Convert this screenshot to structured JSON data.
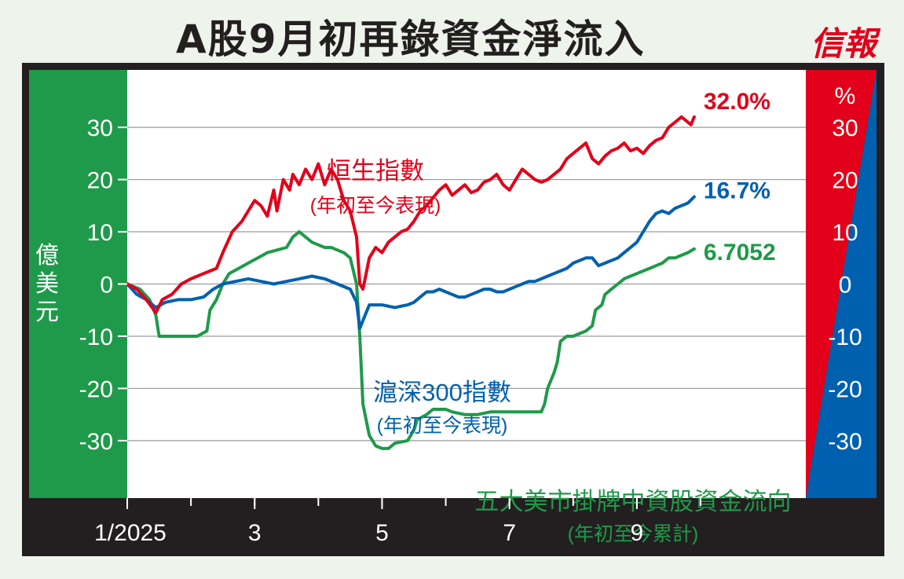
{
  "header": {
    "title": "A股9月初再錄資金淨流入",
    "logo": "信報"
  },
  "colors": {
    "hsi": "#e2001a",
    "csi300": "#0060b0",
    "flow": "#1f9a4a",
    "left_panel": "#1f9a4a",
    "frame": "#231f20",
    "plot_bg": "#ffffff"
  },
  "chart_data": {
    "type": "line",
    "y_left": {
      "label": "億美元",
      "ticks": [
        "30",
        "20",
        "10",
        "0",
        "-10",
        "-20",
        "-30"
      ],
      "range": [
        -41,
        41
      ]
    },
    "y_right": {
      "label": "%",
      "ticks": [
        "30",
        "20",
        "10",
        "0",
        "-10",
        "-20",
        "-30"
      ],
      "range": [
        -41,
        41
      ]
    },
    "x_ticks": [
      "1/2025",
      "3",
      "5",
      "7",
      "9"
    ],
    "x_range": [
      0,
      9
    ],
    "series": [
      {
        "name": "恒生指數",
        "sub_label": "(年初至今表現)",
        "end_label": "32.0%",
        "axis": "right",
        "points": [
          [
            0,
            0
          ],
          [
            0.15,
            -1
          ],
          [
            0.3,
            -3
          ],
          [
            0.45,
            -5.5
          ],
          [
            0.55,
            -3
          ],
          [
            0.7,
            -2
          ],
          [
            0.85,
            0
          ],
          [
            1,
            1
          ],
          [
            1.2,
            2
          ],
          [
            1.4,
            3
          ],
          [
            1.5,
            6
          ],
          [
            1.65,
            10
          ],
          [
            1.8,
            12
          ],
          [
            1.9,
            14
          ],
          [
            2.0,
            16
          ],
          [
            2.1,
            15
          ],
          [
            2.2,
            13
          ],
          [
            2.3,
            18
          ],
          [
            2.35,
            14
          ],
          [
            2.45,
            20
          ],
          [
            2.55,
            18
          ],
          [
            2.6,
            21
          ],
          [
            2.7,
            19
          ],
          [
            2.8,
            22
          ],
          [
            2.9,
            20
          ],
          [
            3.0,
            23
          ],
          [
            3.1,
            19
          ],
          [
            3.2,
            22
          ],
          [
            3.3,
            20
          ],
          [
            3.4,
            16
          ],
          [
            3.5,
            14
          ],
          [
            3.6,
            9
          ],
          [
            3.65,
            0
          ],
          [
            3.7,
            -1
          ],
          [
            3.75,
            2
          ],
          [
            3.8,
            5
          ],
          [
            3.9,
            7
          ],
          [
            4.0,
            6
          ],
          [
            4.1,
            8
          ],
          [
            4.2,
            9
          ],
          [
            4.3,
            10
          ],
          [
            4.4,
            10.5
          ],
          [
            4.5,
            12
          ],
          [
            4.6,
            14
          ],
          [
            4.7,
            15
          ],
          [
            4.8,
            16.5
          ],
          [
            4.9,
            18
          ],
          [
            5.0,
            19
          ],
          [
            5.1,
            17
          ],
          [
            5.2,
            18
          ],
          [
            5.3,
            19
          ],
          [
            5.4,
            17.5
          ],
          [
            5.5,
            18
          ],
          [
            5.6,
            19.5
          ],
          [
            5.7,
            20
          ],
          [
            5.8,
            21
          ],
          [
            5.9,
            19
          ],
          [
            6.0,
            18
          ],
          [
            6.1,
            20
          ],
          [
            6.2,
            22
          ],
          [
            6.3,
            21
          ],
          [
            6.4,
            20
          ],
          [
            6.5,
            19.5
          ],
          [
            6.6,
            20
          ],
          [
            6.7,
            21
          ],
          [
            6.8,
            22
          ],
          [
            6.9,
            24
          ],
          [
            7.0,
            25
          ],
          [
            7.1,
            26
          ],
          [
            7.2,
            27
          ],
          [
            7.3,
            24
          ],
          [
            7.4,
            23
          ],
          [
            7.5,
            24.5
          ],
          [
            7.6,
            25.5
          ],
          [
            7.7,
            26
          ],
          [
            7.8,
            27
          ],
          [
            7.9,
            25.5
          ],
          [
            8.0,
            26
          ],
          [
            8.1,
            25
          ],
          [
            8.2,
            26.5
          ],
          [
            8.3,
            27.5
          ],
          [
            8.4,
            28
          ],
          [
            8.5,
            30
          ],
          [
            8.6,
            31
          ],
          [
            8.7,
            32
          ],
          [
            8.8,
            31
          ],
          [
            8.85,
            30.5
          ],
          [
            8.9,
            32
          ]
        ]
      },
      {
        "name": "滬深300指數",
        "sub_label": "(年初至今表現)",
        "end_label": "16.7%",
        "axis": "right",
        "points": [
          [
            0,
            0
          ],
          [
            0.15,
            -2
          ],
          [
            0.3,
            -3
          ],
          [
            0.45,
            -4.5
          ],
          [
            0.6,
            -3.5
          ],
          [
            0.8,
            -3
          ],
          [
            1,
            -3
          ],
          [
            1.2,
            -2.5
          ],
          [
            1.35,
            -1
          ],
          [
            1.5,
            0
          ],
          [
            1.7,
            0.5
          ],
          [
            1.9,
            1
          ],
          [
            2.1,
            0.5
          ],
          [
            2.3,
            0
          ],
          [
            2.5,
            0.5
          ],
          [
            2.7,
            1
          ],
          [
            2.9,
            1.5
          ],
          [
            3.1,
            1
          ],
          [
            3.3,
            0
          ],
          [
            3.5,
            -1
          ],
          [
            3.6,
            -3.5
          ],
          [
            3.65,
            -8.5
          ],
          [
            3.7,
            -7
          ],
          [
            3.8,
            -4
          ],
          [
            4.0,
            -4
          ],
          [
            4.2,
            -4.5
          ],
          [
            4.4,
            -4
          ],
          [
            4.5,
            -3.5
          ],
          [
            4.6,
            -2.5
          ],
          [
            4.7,
            -1.5
          ],
          [
            4.8,
            -1.5
          ],
          [
            4.9,
            -1
          ],
          [
            5.0,
            -1.5
          ],
          [
            5.1,
            -2
          ],
          [
            5.2,
            -2.5
          ],
          [
            5.3,
            -2.5
          ],
          [
            5.4,
            -2
          ],
          [
            5.5,
            -1.5
          ],
          [
            5.6,
            -1
          ],
          [
            5.7,
            -1
          ],
          [
            5.8,
            -1.5
          ],
          [
            5.9,
            -1.5
          ],
          [
            6.0,
            -1
          ],
          [
            6.1,
            -0.5
          ],
          [
            6.2,
            0
          ],
          [
            6.3,
            0.5
          ],
          [
            6.4,
            0.5
          ],
          [
            6.5,
            1
          ],
          [
            6.6,
            1.5
          ],
          [
            6.7,
            2
          ],
          [
            6.8,
            2.5
          ],
          [
            6.9,
            3
          ],
          [
            7.0,
            4
          ],
          [
            7.1,
            4.5
          ],
          [
            7.2,
            5
          ],
          [
            7.3,
            5
          ],
          [
            7.4,
            3.5
          ],
          [
            7.5,
            4
          ],
          [
            7.6,
            4.5
          ],
          [
            7.7,
            5
          ],
          [
            7.8,
            6
          ],
          [
            7.9,
            7
          ],
          [
            8.0,
            8
          ],
          [
            8.1,
            10
          ],
          [
            8.2,
            12
          ],
          [
            8.3,
            13.5
          ],
          [
            8.4,
            14
          ],
          [
            8.5,
            13.5
          ],
          [
            8.6,
            14.5
          ],
          [
            8.7,
            15
          ],
          [
            8.8,
            15.5
          ],
          [
            8.9,
            16.7
          ]
        ]
      },
      {
        "name": "五大美市掛牌中資股資金流向",
        "sub_label": "(年初至今累計)",
        "end_label": "6.7052",
        "axis": "left",
        "points": [
          [
            0,
            0
          ],
          [
            0.2,
            -1
          ],
          [
            0.35,
            -3
          ],
          [
            0.45,
            -6
          ],
          [
            0.5,
            -10
          ],
          [
            0.7,
            -10
          ],
          [
            0.9,
            -10
          ],
          [
            1.1,
            -10
          ],
          [
            1.25,
            -9
          ],
          [
            1.3,
            -5
          ],
          [
            1.4,
            -3
          ],
          [
            1.5,
            0
          ],
          [
            1.6,
            2
          ],
          [
            1.75,
            3
          ],
          [
            1.9,
            4
          ],
          [
            2.05,
            5
          ],
          [
            2.2,
            6
          ],
          [
            2.35,
            6.5
          ],
          [
            2.5,
            7
          ],
          [
            2.6,
            9
          ],
          [
            2.7,
            10
          ],
          [
            2.8,
            9
          ],
          [
            2.9,
            8
          ],
          [
            3.0,
            7.5
          ],
          [
            3.1,
            7
          ],
          [
            3.2,
            7
          ],
          [
            3.3,
            6.5
          ],
          [
            3.4,
            6
          ],
          [
            3.5,
            5
          ],
          [
            3.6,
            0
          ],
          [
            3.65,
            -10
          ],
          [
            3.7,
            -23
          ],
          [
            3.8,
            -29
          ],
          [
            3.9,
            -31
          ],
          [
            4.0,
            -31.5
          ],
          [
            4.1,
            -31.5
          ],
          [
            4.2,
            -30.5
          ],
          [
            4.4,
            -30
          ],
          [
            4.5,
            -28
          ],
          [
            4.55,
            -26
          ],
          [
            4.7,
            -25
          ],
          [
            4.8,
            -24
          ],
          [
            4.9,
            -24
          ],
          [
            5.0,
            -24
          ],
          [
            5.1,
            -24.5
          ],
          [
            5.3,
            -25
          ],
          [
            5.5,
            -25
          ],
          [
            5.7,
            -24.5
          ],
          [
            5.9,
            -24.5
          ],
          [
            6.1,
            -24.5
          ],
          [
            6.3,
            -24.5
          ],
          [
            6.5,
            -24.5
          ],
          [
            6.55,
            -23
          ],
          [
            6.6,
            -20
          ],
          [
            6.7,
            -17
          ],
          [
            6.75,
            -15
          ],
          [
            6.8,
            -11
          ],
          [
            6.9,
            -10
          ],
          [
            7.0,
            -10
          ],
          [
            7.1,
            -9.5
          ],
          [
            7.2,
            -9
          ],
          [
            7.3,
            -8
          ],
          [
            7.35,
            -5
          ],
          [
            7.45,
            -4
          ],
          [
            7.5,
            -2
          ],
          [
            7.6,
            -1
          ],
          [
            7.7,
            0
          ],
          [
            7.8,
            1
          ],
          [
            7.9,
            1.5
          ],
          [
            8.0,
            2
          ],
          [
            8.1,
            2.5
          ],
          [
            8.2,
            3
          ],
          [
            8.3,
            3.5
          ],
          [
            8.4,
            4
          ],
          [
            8.5,
            5
          ],
          [
            8.6,
            5
          ],
          [
            8.7,
            5.5
          ],
          [
            8.8,
            6
          ],
          [
            8.9,
            6.7052
          ]
        ]
      }
    ]
  }
}
